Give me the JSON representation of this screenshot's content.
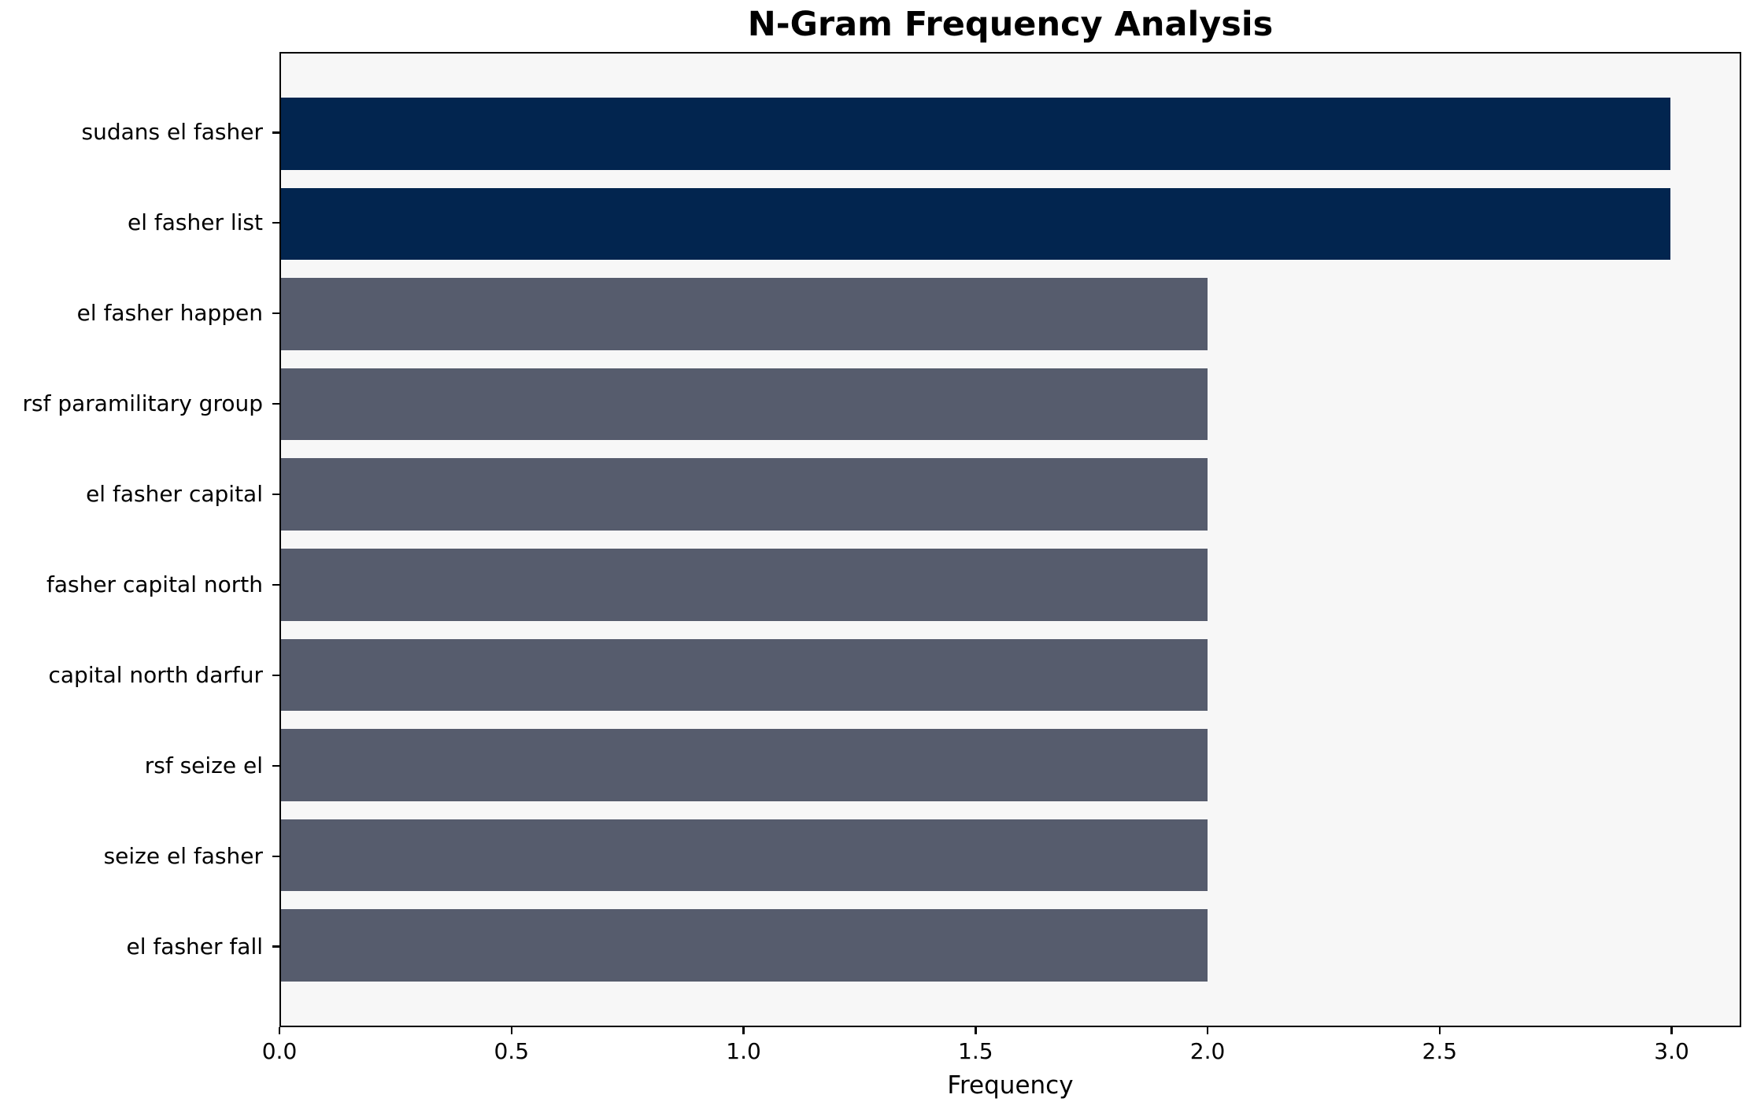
{
  "chart_data": {
    "type": "bar",
    "orientation": "horizontal",
    "title": "N-Gram Frequency Analysis",
    "xlabel": "Frequency",
    "ylabel": "",
    "categories": [
      "sudans el fasher",
      "el fasher list",
      "el fasher happen",
      "rsf paramilitary group",
      "el fasher capital",
      "fasher capital north",
      "capital north darfur",
      "rsf seize el",
      "seize el fasher",
      "el fasher fall"
    ],
    "values": [
      3,
      3,
      2,
      2,
      2,
      2,
      2,
      2,
      2,
      2
    ],
    "bar_colors": [
      "#02254F",
      "#02254F",
      "#565C6D",
      "#565C6D",
      "#565C6D",
      "#565C6D",
      "#565C6D",
      "#565C6D",
      "#565C6D",
      "#565C6D"
    ],
    "x_tick_labels": [
      "0.0",
      "0.5",
      "1.0",
      "1.5",
      "2.0",
      "2.5",
      "3.0"
    ],
    "x_tick_values": [
      0,
      0.5,
      1,
      1.5,
      2,
      2.5,
      3
    ],
    "xlim": [
      0,
      3.15
    ],
    "grid": false,
    "legend_position": "none",
    "colors": {
      "highlight": "#02254F",
      "default": "#565C6D",
      "plot_background": "#F7F7F7",
      "figure_background": "#FFFFFF",
      "text": "#000000"
    }
  }
}
